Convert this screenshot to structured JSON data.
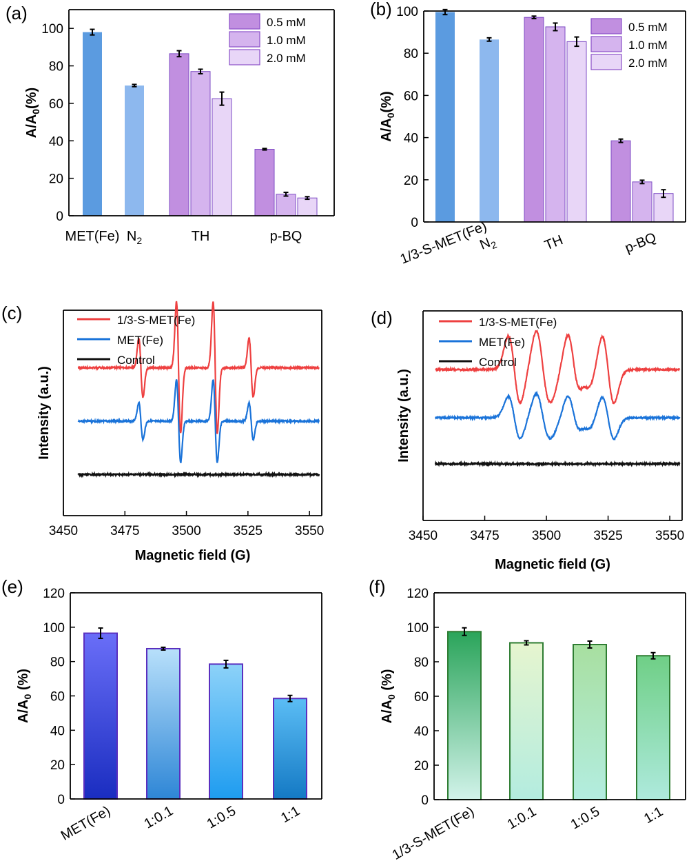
{
  "colors": {
    "axis": "#000000",
    "met": "#5b9be0",
    "n2": "#8db8ee",
    "c05": "#c18fe0",
    "c10": "#d5b4ee",
    "c20": "#e8d6f7",
    "legend_border": "#8a4fc8",
    "epr_red": "#ee4040",
    "epr_blue": "#1a73d9",
    "epr_black": "#111111",
    "e_top": "#6a6ef8",
    "e_bottom": "#1a2dc0",
    "e_light_top": "#b8e0fb",
    "e_light_bottom": "#2e86d6",
    "e_border": "#5a2fbf",
    "f_dark_top": "#2aa45a",
    "f_dark_bottom": "#c8f0e4",
    "f_light_top": "#e6f5cf",
    "f_light_bottom": "#b0ede0",
    "f_border": "#2e7d32"
  },
  "chart_data": [
    {
      "panel": "(a)",
      "type": "bar",
      "ylabel_main": "A/A",
      "ylabel_sub": "0",
      "ylabel_tail": "(%)",
      "ylim": [
        0,
        110
      ],
      "yticks": [
        0,
        20,
        40,
        60,
        80,
        100
      ],
      "legend": [
        {
          "label": "0.5 mM",
          "color": "#c18fe0"
        },
        {
          "label": "1.0 mM",
          "color": "#d5b4ee"
        },
        {
          "label": "2.0 mM",
          "color": "#e8d6f7"
        }
      ],
      "categories": [
        {
          "label": "MET(Fe)",
          "sub": "",
          "bars": [
            {
              "value": 98,
              "err": 1.5,
              "color": "#5b9be0"
            }
          ]
        },
        {
          "label": "N",
          "sub": "2",
          "bars": [
            {
              "value": 69.5,
              "err": 0.6,
              "color": "#8db8ee"
            }
          ]
        },
        {
          "label": "TH",
          "sub": "",
          "bars": [
            {
              "value": 86.5,
              "err": 1.6,
              "color": "#c18fe0"
            },
            {
              "value": 77,
              "err": 1.2,
              "color": "#d5b4ee"
            },
            {
              "value": 62.5,
              "err": 3.5,
              "color": "#e8d6f7"
            }
          ]
        },
        {
          "label": "p-BQ",
          "sub": "",
          "bars": [
            {
              "value": 35.5,
              "err": 0.4,
              "color": "#c18fe0"
            },
            {
              "value": 11.5,
              "err": 1.0,
              "color": "#d5b4ee"
            },
            {
              "value": 9.5,
              "err": 0.7,
              "color": "#e8d6f7"
            }
          ]
        }
      ]
    },
    {
      "panel": "(b)",
      "type": "bar",
      "ylabel_main": "A/A",
      "ylabel_sub": "0",
      "ylabel_tail": "(%)",
      "ylim": [
        0,
        100
      ],
      "yticks": [
        0,
        20,
        40,
        60,
        80,
        100
      ],
      "legend": [
        {
          "label": "0.5 mM",
          "color": "#c18fe0"
        },
        {
          "label": "1.0 mM",
          "color": "#d5b4ee"
        },
        {
          "label": "2.0 mM",
          "color": "#e8d6f7"
        }
      ],
      "categories": [
        {
          "label": "1/3-S-MET(Fe)",
          "sub": "",
          "bars": [
            {
              "value": 99.5,
              "err": 1.2,
              "color": "#5b9be0"
            }
          ]
        },
        {
          "label": "N",
          "sub": "2",
          "bars": [
            {
              "value": 86.5,
              "err": 0.8,
              "color": "#8db8ee"
            }
          ]
        },
        {
          "label": "TH",
          "sub": "",
          "bars": [
            {
              "value": 97,
              "err": 0.6,
              "color": "#c18fe0"
            },
            {
              "value": 92.5,
              "err": 1.8,
              "color": "#d5b4ee"
            },
            {
              "value": 85.5,
              "err": 2.2,
              "color": "#e8d6f7"
            }
          ]
        },
        {
          "label": "p-BQ",
          "sub": "",
          "bars": [
            {
              "value": 38.5,
              "err": 0.8,
              "color": "#c18fe0"
            },
            {
              "value": 19,
              "err": 0.8,
              "color": "#d5b4ee"
            },
            {
              "value": 13.5,
              "err": 1.8,
              "color": "#e8d6f7"
            }
          ]
        }
      ]
    },
    {
      "panel": "(c)",
      "type": "line",
      "xlabel": "Magnetic field (G)",
      "ylabel": "Intensity (a.u.)",
      "xlim": [
        3450,
        3555
      ],
      "xticks": [
        3450,
        3475,
        3500,
        3525,
        3550
      ],
      "x_start": 3456,
      "x_end": 3554,
      "peaks": [
        3481.5,
        3496.8,
        3511.7,
        3526.3
      ],
      "peak_heights": [
        0.45,
        1.0,
        1.0,
        0.45
      ],
      "peak_width": 0.85,
      "series": [
        {
          "name": "1/3-S-MET(Fe)",
          "color": "#ee4040",
          "level": 0.72,
          "amp": 0.32
        },
        {
          "name": "MET(Fe)",
          "color": "#1a73d9",
          "level": 0.46,
          "amp": 0.2
        },
        {
          "name": "Control",
          "color": "#111111",
          "level": 0.2,
          "amp": 0.0
        }
      ]
    },
    {
      "panel": "(d)",
      "type": "line",
      "xlabel": "Magnetic field (G)",
      "ylabel": "Intensity (a.u.)",
      "xlim": [
        3450,
        3555
      ],
      "xticks": [
        3450,
        3475,
        3500,
        3525,
        3550
      ],
      "x_start": 3455,
      "x_end": 3554,
      "peaks": [
        3487,
        3498,
        3501,
        3511,
        3515.5,
        3525
      ],
      "peak_heights": [
        1.0,
        1.0,
        0.45,
        1.0,
        0.45,
        1.0
      ],
      "peak_width": 2.4,
      "series": [
        {
          "name": "1/3-S-MET(Fe)",
          "color": "#ee4040",
          "level": 0.72,
          "amp": 0.16
        },
        {
          "name": "MET(Fe)",
          "color": "#1a73d9",
          "level": 0.49,
          "amp": 0.1
        },
        {
          "name": "Control",
          "color": "#111111",
          "level": 0.27,
          "amp": 0.0
        }
      ]
    },
    {
      "panel": "(e)",
      "type": "bar",
      "ylabel": "A/A0 (%)",
      "ylabel_main": "A/A",
      "ylabel_sub": "0",
      "ylabel_tail": " (%)",
      "ylim": [
        0,
        120
      ],
      "yticks": [
        0,
        20,
        40,
        60,
        80,
        100,
        120
      ],
      "categories": [
        {
          "label": "MET(Fe)",
          "value": 96.5,
          "err": 3.0,
          "grad": [
            "#6a6ef8",
            "#1a2dc0"
          ]
        },
        {
          "label": "1:0.1",
          "value": 87.5,
          "err": 0.8,
          "grad": [
            "#b8e0fb",
            "#2e86d6"
          ]
        },
        {
          "label": "1:0.5",
          "value": 78.5,
          "err": 2.2,
          "grad": [
            "#8dd2f9",
            "#1e9cf0"
          ]
        },
        {
          "label": "1:1",
          "value": 58.5,
          "err": 1.8,
          "grad": [
            "#5bbdf5",
            "#1479c4"
          ]
        }
      ]
    },
    {
      "panel": "(f)",
      "type": "bar",
      "ylabel": "A/A0 (%)",
      "ylabel_main": "A/A",
      "ylabel_sub": "0",
      "ylabel_tail": " (%)",
      "ylim": [
        0,
        120
      ],
      "yticks": [
        0,
        20,
        40,
        60,
        80,
        100,
        120
      ],
      "categories": [
        {
          "label": "1/3-S-MET(Fe)",
          "value": 97.5,
          "err": 2.2,
          "grad": [
            "#2aa45a",
            "#d2f3ea"
          ]
        },
        {
          "label": "1:0.1",
          "value": 91,
          "err": 1.2,
          "grad": [
            "#e6f5cf",
            "#b3ecdf"
          ]
        },
        {
          "label": "1:0.5",
          "value": 90,
          "err": 2.0,
          "grad": [
            "#a8dfa0",
            "#b3ede0"
          ]
        },
        {
          "label": "1:1",
          "value": 83.5,
          "err": 1.8,
          "grad": [
            "#6fcf86",
            "#aeeadd"
          ]
        }
      ]
    }
  ]
}
